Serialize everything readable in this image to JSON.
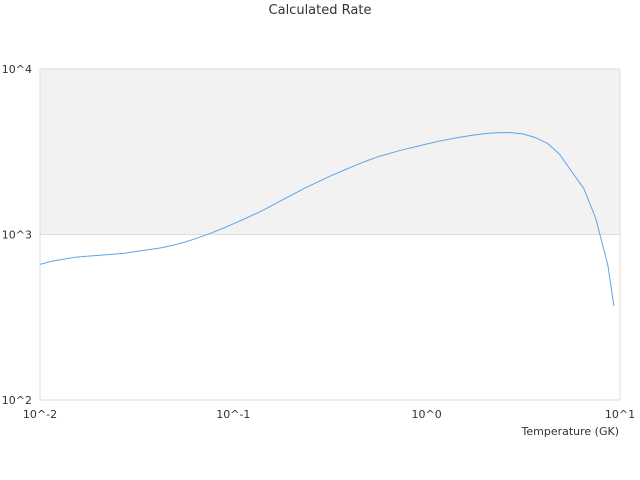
{
  "chart_data": {
    "type": "line",
    "title": "Calculated Rate",
    "xlabel": "Temperature (GK)",
    "ylabel": "",
    "x_scale": "log",
    "y_scale": "log",
    "xlim": [
      0.01,
      10
    ],
    "ylim": [
      100,
      10000
    ],
    "x_ticks": [
      "10^-2",
      "10^-1",
      "10^0",
      "10^1"
    ],
    "y_ticks": [
      "10^2",
      "10^3",
      "10^4"
    ],
    "grid": true,
    "band_color": "#f2f2f2",
    "line_color": "#5da5e8",
    "series": [
      {
        "x": [
          0.01,
          0.0115,
          0.0133,
          0.0154,
          0.0178,
          0.0205,
          0.0237,
          0.0274,
          0.0316,
          0.0365,
          0.0422,
          0.0487,
          0.0562,
          0.0649,
          0.075,
          0.0866,
          0.1,
          0.1155,
          0.1334,
          0.154,
          0.1778,
          0.2054,
          0.2371,
          0.2738,
          0.3162,
          0.3652,
          0.4217,
          0.487,
          0.5623,
          0.6494,
          0.75,
          0.866,
          1.0,
          1.155,
          1.334,
          1.54,
          1.778,
          2.054,
          2.371,
          2.738,
          3.162,
          3.652,
          4.217,
          4.87,
          5.623,
          6.494,
          7.5,
          8.66,
          9.3
        ],
        "y": [
          660,
          690,
          710,
          730,
          740,
          750,
          760,
          770,
          790,
          810,
          830,
          860,
          900,
          950,
          1010,
          1080,
          1160,
          1250,
          1350,
          1470,
          1610,
          1760,
          1920,
          2080,
          2250,
          2420,
          2600,
          2780,
          2950,
          3100,
          3250,
          3380,
          3520,
          3660,
          3780,
          3900,
          4000,
          4080,
          4130,
          4130,
          4050,
          3850,
          3550,
          3050,
          2400,
          1900,
          1250,
          650,
          370
        ]
      }
    ]
  }
}
